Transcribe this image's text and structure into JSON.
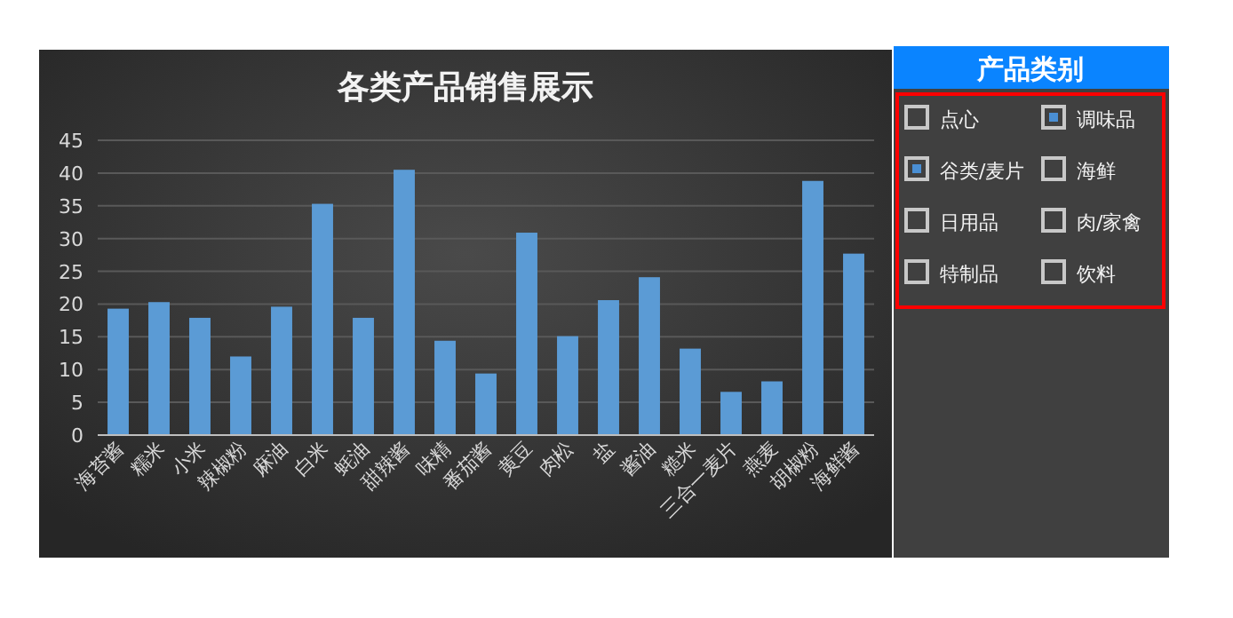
{
  "chart_data": [
    {
      "type": "bar",
      "title": "各类产品销售展示",
      "categories": [
        "海苔酱",
        "糯米",
        "小米",
        "辣椒粉",
        "麻油",
        "白米",
        "蚝油",
        "甜辣酱",
        "味精",
        "番茄酱",
        "黄豆",
        "肉松",
        "盐",
        "酱油",
        "糙米",
        "三合一麦片",
        "燕麦",
        "胡椒粉",
        "海鲜酱"
      ],
      "values": [
        19.3,
        20.3,
        17.9,
        12.0,
        19.6,
        35.3,
        17.9,
        40.5,
        14.4,
        9.4,
        30.9,
        15.1,
        20.6,
        24.1,
        13.2,
        6.6,
        8.2,
        38.8,
        27.7
      ],
      "color": "#5b9bd5",
      "ylim": [
        0,
        45
      ],
      "yticks": [
        0,
        5,
        10,
        15,
        20,
        25,
        30,
        35,
        40,
        45
      ],
      "grid": "y"
    },
    {
      "type": "other",
      "title": "产品类别",
      "annotations": [
        "点心",
        "调味品",
        "谷类/麦片",
        "海鲜",
        "日用品",
        "肉/家禽",
        "特制品",
        "饮料"
      ],
      "colors": [
        "#404040",
        "#4a8fd4",
        "#4a8fd4",
        "#404040",
        "#404040",
        "#404040",
        "#404040",
        "#404040"
      ]
    }
  ]
}
